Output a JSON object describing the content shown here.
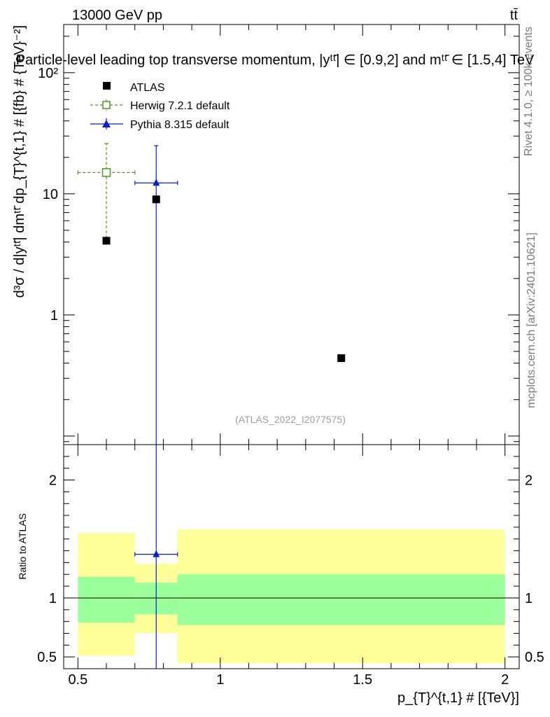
{
  "header": {
    "left": "13000 GeV pp",
    "right": "tt̄"
  },
  "main_title": "Particle-level leading top transverse momentum, |yᵗᵗ̄| ∈ [0.9,2] and mᵗᵗ̄ ∈ [1.5,4] TeV",
  "side_labels": {
    "rivet": "Rivet 4.1.0, ≥ 100k events",
    "mcplots": "mcplots.cern.ch [arXiv:2401.10621]"
  },
  "watermark": "(ATLAS_2022_I2077575)",
  "chart_data": [
    {
      "type": "scatter",
      "panel": "main",
      "title": "Particle-level leading top transverse momentum",
      "xlabel": "p_{T}^{t,1} # [{TeV}]",
      "ylabel": "d³σ / d|yᵗᵗ̄| dmᵗᵗ̄ dp_{T}^{t,1} # [{fb} # {TeV}⁻²]",
      "xlim": [
        0.45,
        2.05
      ],
      "ylim": [
        0.085,
        250
      ],
      "yscale": "log",
      "yticks": [
        {
          "value": 1,
          "label": "1"
        },
        {
          "value": 10,
          "label": "10"
        },
        {
          "value": 100,
          "label": "10²"
        }
      ],
      "legend_position": "top-left",
      "series": [
        {
          "name": "ATLAS",
          "marker": "filled-square",
          "color": "#000000",
          "points": [
            {
              "x": 0.6,
              "y": 4.1
            },
            {
              "x": 0.775,
              "y": 9.0
            },
            {
              "x": 1.425,
              "y": 0.44
            }
          ]
        },
        {
          "name": "Herwig 7.2.1 default",
          "marker": "open-square",
          "line": "dashed",
          "color": "#4a9a1e",
          "points": [
            {
              "x": 0.6,
              "xlo": 0.5,
              "xhi": 0.7,
              "y": 15.0,
              "ylo": 4.3,
              "yhi": 26.0
            }
          ]
        },
        {
          "name": "Pythia 8.315 default",
          "marker": "filled-triangle",
          "line": "solid",
          "color": "#0a1ccc",
          "points": [
            {
              "x": 0.775,
              "xlo": 0.7,
              "xhi": 0.85,
              "y": 12.3,
              "ylo": 0.05,
              "yhi": 25.0
            }
          ]
        }
      ]
    },
    {
      "type": "area",
      "panel": "ratio",
      "ylabel": "Ratio to ATLAS",
      "xlabel": "p_{T}^{t,1} # [{TeV}]",
      "xlim": [
        0.45,
        2.05
      ],
      "ylim": [
        0.4,
        2.3
      ],
      "xticks": [
        {
          "value": 0.5,
          "label": "0.5"
        },
        {
          "value": 1,
          "label": "1"
        },
        {
          "value": 1.5,
          "label": "1.5"
        },
        {
          "value": 2,
          "label": "2"
        }
      ],
      "yticks": [
        {
          "value": 0.5,
          "label": "0.5"
        },
        {
          "value": 1,
          "label": "1"
        },
        {
          "value": 2,
          "label": "2"
        }
      ],
      "bands": [
        {
          "x0": 0.5,
          "x1": 0.7,
          "yellow": [
            0.51,
            1.55
          ],
          "green": [
            0.79,
            1.18
          ]
        },
        {
          "x0": 0.7,
          "x1": 0.85,
          "yellow": [
            0.7,
            1.29
          ],
          "green": [
            0.86,
            1.13
          ]
        },
        {
          "x0": 0.85,
          "x1": 2.0,
          "yellow": [
            0.445,
            1.58
          ],
          "green": [
            0.77,
            1.2
          ]
        }
      ],
      "band_colors": {
        "yellow": "#ffff9a",
        "green": "#9aff9a"
      },
      "reference_line": 1,
      "pythia_ratio": {
        "x": 0.775,
        "xlo": 0.7,
        "xhi": 0.85,
        "y": 1.37,
        "ylo": 0.3,
        "yhi": 2.8
      }
    }
  ]
}
